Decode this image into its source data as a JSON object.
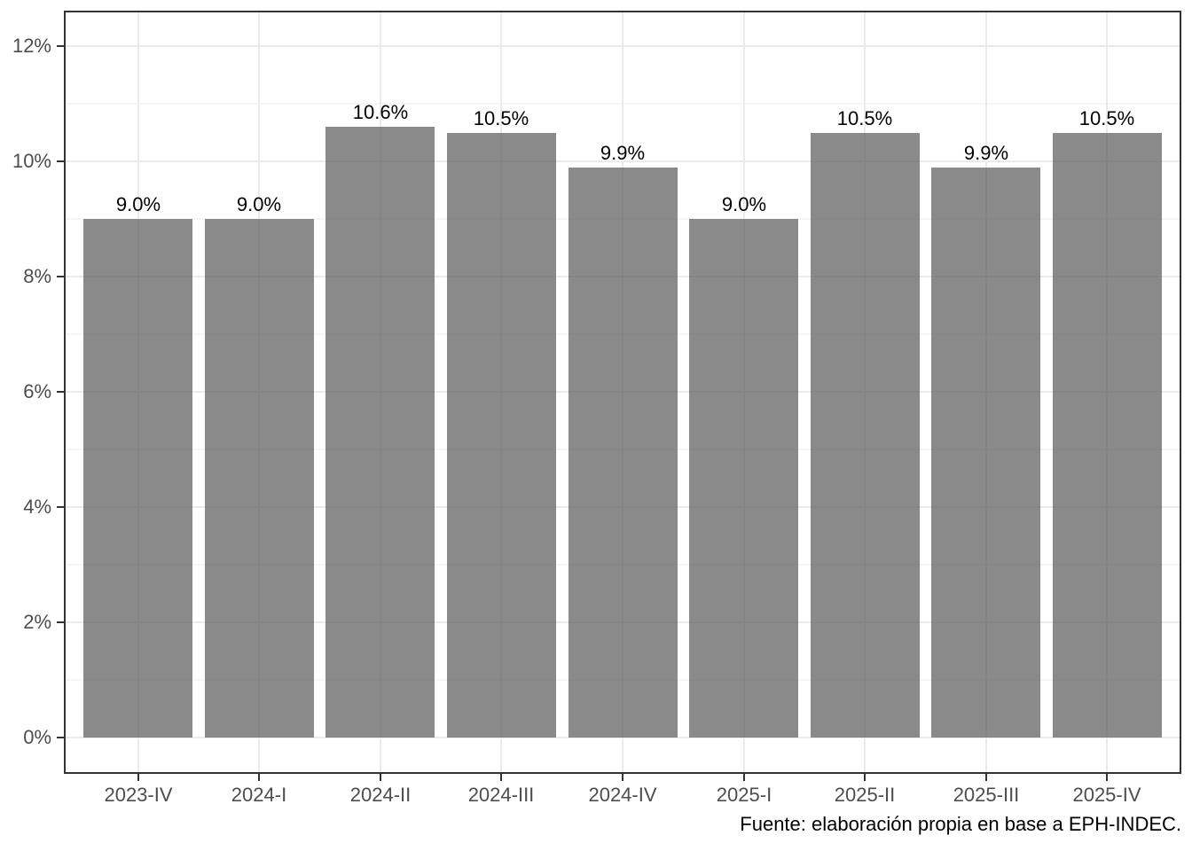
{
  "chart_data": {
    "type": "bar",
    "title": "",
    "xlabel": "",
    "ylabel": "",
    "categories": [
      "2023-IV",
      "2024-I",
      "2024-II",
      "2024-III",
      "2024-IV",
      "2025-I",
      "2025-II",
      "2025-III",
      "2025-IV"
    ],
    "values": [
      9.0,
      9.0,
      10.6,
      10.5,
      9.9,
      9.0,
      10.5,
      9.9,
      10.5
    ],
    "bar_labels": [
      "9.0%",
      "9.0%",
      "10.6%",
      "10.5%",
      "9.9%",
      "9.0%",
      "10.5%",
      "9.9%",
      "10.5%"
    ],
    "ylim": [
      0,
      12.6
    ],
    "y_major_ticks": [
      {
        "value": 0,
        "label": "0%"
      },
      {
        "value": 2,
        "label": "2%"
      },
      {
        "value": 4,
        "label": "4%"
      },
      {
        "value": 6,
        "label": "6%"
      },
      {
        "value": 8,
        "label": "8%"
      },
      {
        "value": 10,
        "label": "10%"
      },
      {
        "value": 12,
        "label": "12%"
      }
    ],
    "y_minor_ticks": [
      1,
      3,
      5,
      7,
      9,
      11
    ],
    "grid": "horizontal major+minor lines, vertical major line at each category center",
    "legend": "none",
    "caption": "Fuente: elaboración propia en base a EPH-INDEC."
  },
  "colors": {
    "background": "#FFFFFF",
    "bar_fill": "#595959",
    "bar_opacity": 0.7,
    "grid_major": "#EBEBEB",
    "grid_minor": "#F5F5F5",
    "axis_text": "#4D4D4D",
    "ticks_and_border": "#333333",
    "bar_label_text": "#000000",
    "caption_text": "#000000"
  }
}
